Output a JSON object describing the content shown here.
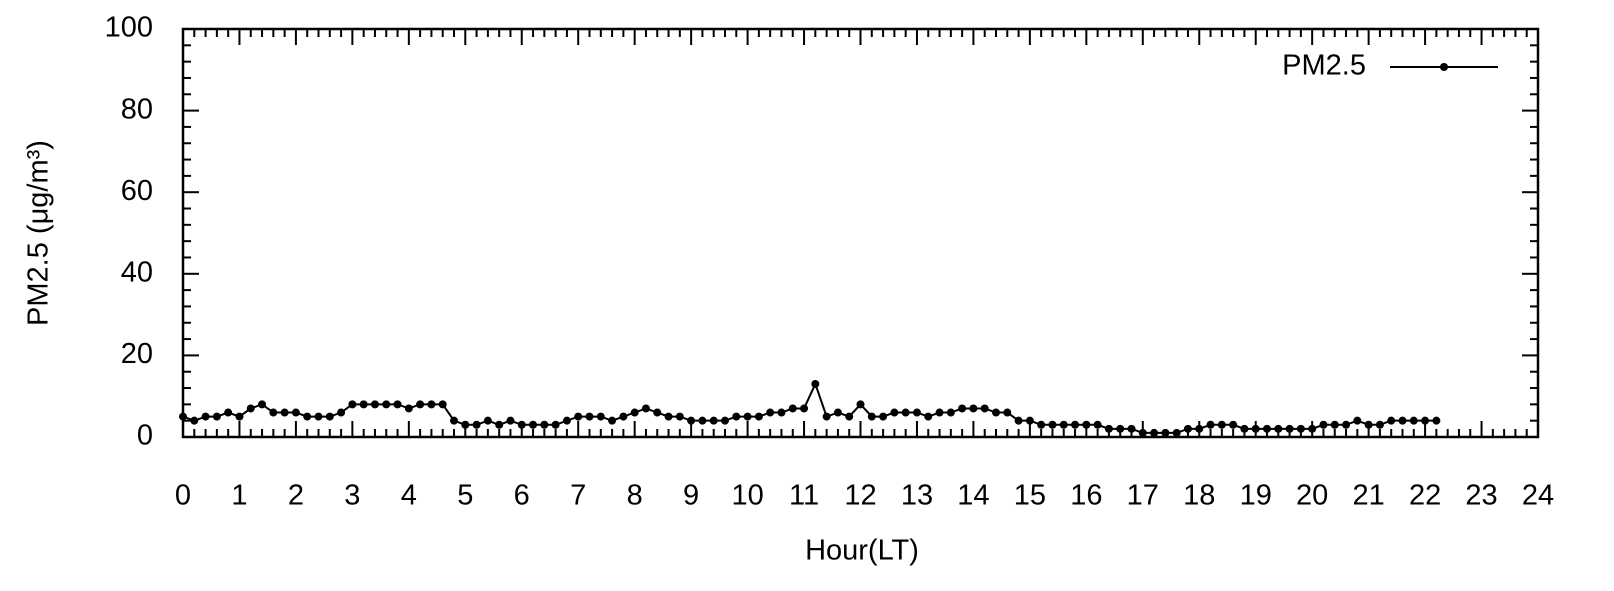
{
  "chart_data": {
    "type": "line",
    "xlabel": "Hour(LT)",
    "ylabel": "PM2.5 (μg/m³)",
    "legend": "top-right",
    "xlim": [
      0,
      24
    ],
    "xticks": [
      0,
      1,
      2,
      3,
      4,
      5,
      6,
      7,
      8,
      9,
      10,
      11,
      12,
      13,
      14,
      15,
      16,
      17,
      18,
      19,
      20,
      21,
      22,
      23,
      24
    ],
    "ylim": [
      0,
      100
    ],
    "yticks": [
      0,
      20,
      40,
      60,
      80,
      100
    ],
    "x": [
      0,
      0.2,
      0.4,
      0.6,
      0.8,
      1,
      1.2,
      1.4,
      1.6,
      1.8,
      2,
      2.2,
      2.4,
      2.6,
      2.8,
      3,
      3.2,
      3.4,
      3.6,
      3.8,
      4,
      4.2,
      4.4,
      4.6,
      4.8,
      5,
      5.2,
      5.4,
      5.6,
      5.8,
      6,
      6.2,
      6.4,
      6.6,
      6.8,
      7,
      7.2,
      7.4,
      7.6,
      7.8,
      8,
      8.2,
      8.4,
      8.6,
      8.8,
      9,
      9.2,
      9.4,
      9.6,
      9.8,
      10,
      10.2,
      10.4,
      10.6,
      10.8,
      11,
      11.2,
      11.4,
      11.6,
      11.8,
      12,
      12.2,
      12.4,
      12.6,
      12.8,
      13,
      13.2,
      13.4,
      13.6,
      13.8,
      14,
      14.2,
      14.4,
      14.6,
      14.8,
      15,
      15.2,
      15.4,
      15.6,
      15.8,
      16,
      16.2,
      16.4,
      16.6,
      16.8,
      17,
      17.2,
      17.4,
      17.6,
      17.8,
      18,
      18.2,
      18.4,
      18.6,
      18.8,
      19,
      19.2,
      19.4,
      19.6,
      19.8,
      20,
      20.2,
      20.4,
      20.6,
      20.8,
      21,
      21.2,
      21.4,
      21.6,
      21.8,
      22,
      22.2
    ],
    "series": [
      {
        "name": "PM2.5",
        "color": "#000000",
        "values": [
          5,
          4,
          5,
          5,
          6,
          5,
          7,
          8,
          6,
          6,
          6,
          5,
          5,
          5,
          6,
          8,
          8,
          8,
          8,
          8,
          7,
          8,
          8,
          8,
          4,
          3,
          3,
          4,
          3,
          4,
          3,
          3,
          3,
          3,
          4,
          5,
          5,
          5,
          4,
          5,
          6,
          7,
          6,
          5,
          5,
          4,
          4,
          4,
          4,
          5,
          5,
          5,
          6,
          6,
          7,
          7,
          13,
          5,
          6,
          5,
          8,
          5,
          5,
          6,
          6,
          6,
          5,
          6,
          6,
          7,
          7,
          7,
          6,
          6,
          4,
          4,
          3,
          3,
          3,
          3,
          3,
          3,
          2,
          2,
          2,
          1,
          1,
          1,
          1,
          2,
          2,
          3,
          3,
          3,
          2,
          2,
          2,
          2,
          2,
          2,
          2,
          3,
          3,
          3,
          4,
          3,
          3,
          4,
          4,
          4,
          4,
          4
        ]
      }
    ]
  }
}
